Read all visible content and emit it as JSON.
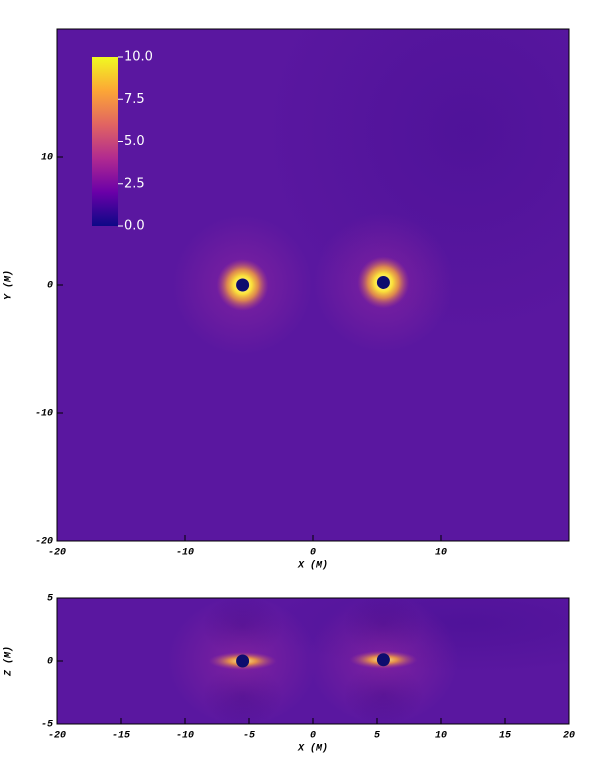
{
  "chart_data": [
    {
      "type": "heatmap",
      "xlabel": "X (M)",
      "ylabel": "Y (M)",
      "xlim": [
        -20,
        20
      ],
      "ylim": [
        -20,
        20
      ],
      "xticks": [
        -20,
        -10,
        0,
        10
      ],
      "yticks": [
        -20,
        -10,
        0,
        10
      ],
      "points": {
        "x": [
          -5.5,
          5.5
        ],
        "y": [
          0,
          0.2
        ]
      },
      "colormap": [
        "#0d0887",
        "#6a00a8",
        "#b12a90",
        "#e16462",
        "#fca636",
        "#f0f921"
      ],
      "colorbar": {
        "lim": [
          0,
          10
        ],
        "ticks": [
          {
            "value": 0,
            "label": "0.0"
          },
          {
            "value": 2.5,
            "label": "2.5"
          },
          {
            "value": 5,
            "label": "5.0"
          },
          {
            "value": 7.5,
            "label": "7.5"
          },
          {
            "value": 10,
            "label": "10.0"
          }
        ]
      }
    },
    {
      "type": "heatmap",
      "xlabel": "X (M)",
      "ylabel": "Z (M)",
      "xlim": [
        -20,
        20
      ],
      "ylim": [
        -5,
        5
      ],
      "xticks": [
        -20,
        -15,
        -10,
        -5,
        0,
        5,
        10,
        15,
        20
      ],
      "yticks": [
        -5,
        0,
        5
      ],
      "points": {
        "x": [
          -5.5,
          5.5
        ],
        "y": [
          0,
          0.1
        ]
      }
    }
  ]
}
